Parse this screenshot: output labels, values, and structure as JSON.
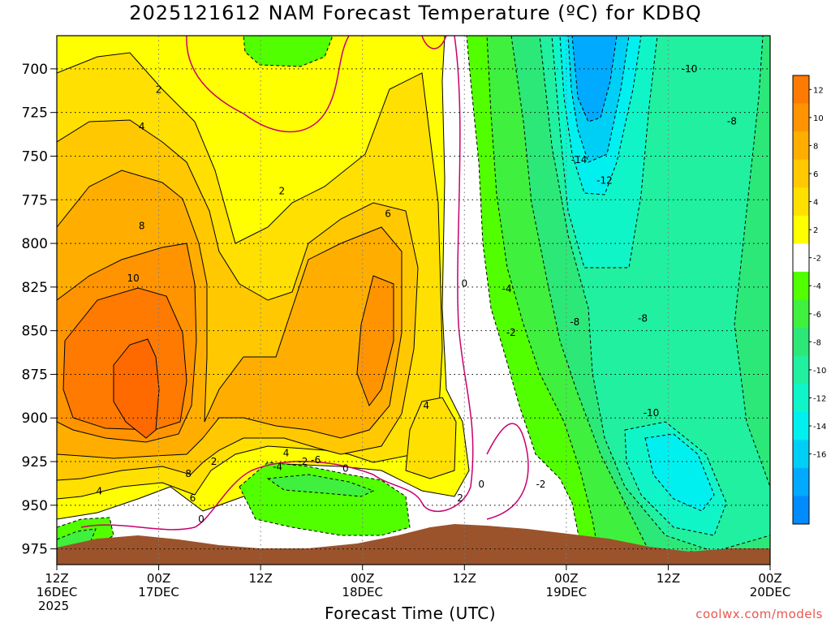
{
  "chart_data": {
    "type": "heatmap",
    "title": "2025121612 NAM Forecast Temperature (ºC) for KDBQ",
    "xlabel": "Forecast Time (UTC)",
    "ylabel": "",
    "y_ticks": [
      700,
      725,
      750,
      775,
      800,
      825,
      850,
      875,
      900,
      925,
      950,
      975
    ],
    "ylim": [
      984,
      681
    ],
    "x_ticks": [
      {
        "hour": 0,
        "line1": "12Z",
        "line2": "16DEC",
        "line3": "2025"
      },
      {
        "hour": 12,
        "line1": "00Z",
        "line2": "17DEC",
        "line3": ""
      },
      {
        "hour": 24,
        "line1": "12Z",
        "line2": "",
        "line3": ""
      },
      {
        "hour": 36,
        "line1": "00Z",
        "line2": "18DEC",
        "line3": ""
      },
      {
        "hour": 48,
        "line1": "12Z",
        "line2": "",
        "line3": ""
      },
      {
        "hour": 60,
        "line1": "00Z",
        "line2": "19DEC",
        "line3": ""
      },
      {
        "hour": 72,
        "line1": "12Z",
        "line2": "",
        "line3": ""
      },
      {
        "hour": 84,
        "line1": "00Z",
        "line2": "20DEC",
        "line3": ""
      }
    ],
    "xlim": [
      0,
      84
    ],
    "grid": true,
    "colorbar": {
      "levels": [
        {
          "label": "12",
          "color": "#ff7a00"
        },
        {
          "label": "10",
          "color": "#ff9400"
        },
        {
          "label": "8",
          "color": "#ffae00"
        },
        {
          "label": "6",
          "color": "#ffc800"
        },
        {
          "label": "4",
          "color": "#ffe000"
        },
        {
          "label": "2",
          "color": "#ffff00"
        },
        {
          "label": "-2",
          "color": "#ffffff"
        },
        {
          "label": "-4",
          "color": "#52ff00"
        },
        {
          "label": "-6",
          "color": "#3ff03f"
        },
        {
          "label": "-8",
          "color": "#2ce878"
        },
        {
          "label": "-10",
          "color": "#20f0a0"
        },
        {
          "label": "-12",
          "color": "#10f5c8"
        },
        {
          "label": "-14",
          "color": "#00f0f0"
        },
        {
          "label": "-16",
          "color": "#00cff5"
        },
        {
          "label": "",
          "color": "#00aaff"
        },
        {
          "label": "",
          "color": "#008cff"
        }
      ]
    },
    "contour_labels": [
      {
        "text": "2",
        "hour": 12,
        "p": 712
      },
      {
        "text": "4",
        "hour": 10,
        "p": 733
      },
      {
        "text": "8",
        "hour": 10,
        "p": 790
      },
      {
        "text": "10",
        "hour": 9,
        "p": 820
      },
      {
        "text": "2",
        "hour": 26.5,
        "p": 770
      },
      {
        "text": "6",
        "hour": 39,
        "p": 783
      },
      {
        "text": "0",
        "hour": 48,
        "p": 823
      },
      {
        "text": "-4",
        "hour": 53,
        "p": 826
      },
      {
        "text": "-2",
        "hour": 53.5,
        "p": 851
      },
      {
        "text": "-8",
        "hour": 61,
        "p": 845
      },
      {
        "text": "-8",
        "hour": 69,
        "p": 843
      },
      {
        "text": "-14",
        "hour": 61.5,
        "p": 752
      },
      {
        "text": "-12",
        "hour": 64.5,
        "p": 764
      },
      {
        "text": "-10",
        "hour": 74.5,
        "p": 700
      },
      {
        "text": "-8",
        "hour": 79.5,
        "p": 730
      },
      {
        "text": "-10",
        "hour": 70,
        "p": 897
      },
      {
        "text": "4",
        "hour": 43.5,
        "p": 893
      },
      {
        "text": "2",
        "hour": 47.5,
        "p": 946
      },
      {
        "text": "0",
        "hour": 50,
        "p": 938
      },
      {
        "text": "-2",
        "hour": 57,
        "p": 938
      },
      {
        "text": "-4",
        "hour": 26,
        "p": 928
      },
      {
        "text": "4",
        "hour": 27,
        "p": 920
      },
      {
        "text": "-2",
        "hour": 29,
        "p": 925
      },
      {
        "text": "-6",
        "hour": 30.5,
        "p": 924
      },
      {
        "text": "0",
        "hour": 34,
        "p": 929
      },
      {
        "text": "2",
        "hour": 18.5,
        "p": 925
      },
      {
        "text": "8",
        "hour": 15.5,
        "p": 932
      },
      {
        "text": "6",
        "hour": 16,
        "p": 946
      },
      {
        "text": "0",
        "hour": 17,
        "p": 958
      },
      {
        "text": "4",
        "hour": 5,
        "p": 942
      }
    ]
  },
  "credit": "coolwx.com/models"
}
